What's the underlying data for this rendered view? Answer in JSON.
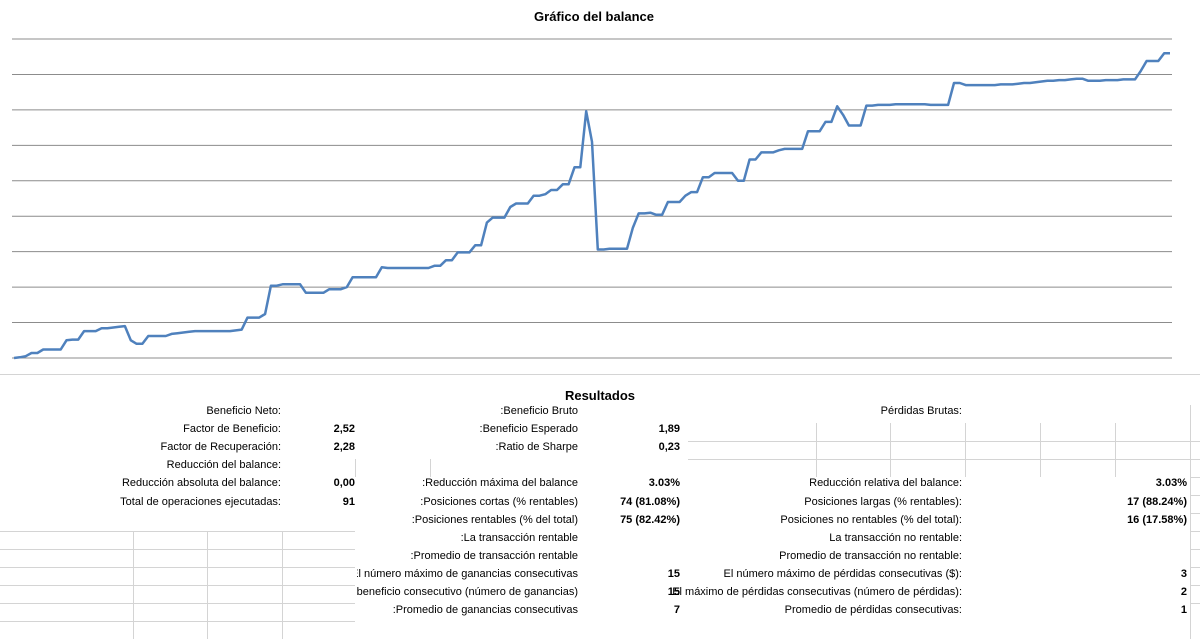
{
  "chart_data": {
    "type": "line",
    "title": "Gráfico del balance",
    "xlabel": "",
    "ylabel": "",
    "grid": true,
    "legend": "none",
    "color": "#4f81bd",
    "ylim": [
      0,
      9
    ],
    "values": [
      0.0,
      0.02,
      0.05,
      0.14,
      0.14,
      0.24,
      0.24,
      0.24,
      0.24,
      0.5,
      0.52,
      0.52,
      0.76,
      0.76,
      0.76,
      0.84,
      0.84,
      0.86,
      0.88,
      0.9,
      0.5,
      0.4,
      0.4,
      0.62,
      0.62,
      0.62,
      0.62,
      0.68,
      0.7,
      0.72,
      0.74,
      0.76,
      0.76,
      0.76,
      0.76,
      0.76,
      0.76,
      0.76,
      0.78,
      0.8,
      1.14,
      1.14,
      1.14,
      1.24,
      2.04,
      2.04,
      2.08,
      2.08,
      2.08,
      2.08,
      1.84,
      1.84,
      1.84,
      1.84,
      1.94,
      1.94,
      1.94,
      2.0,
      2.28,
      2.28,
      2.28,
      2.28,
      2.28,
      2.56,
      2.54,
      2.54,
      2.54,
      2.54,
      2.54,
      2.54,
      2.54,
      2.54,
      2.6,
      2.6,
      2.76,
      2.76,
      2.98,
      2.98,
      2.98,
      3.18,
      3.18,
      3.82,
      3.96,
      3.96,
      3.96,
      4.26,
      4.36,
      4.36,
      4.36,
      4.58,
      4.58,
      4.62,
      4.74,
      4.74,
      4.9,
      4.9,
      5.38,
      5.38,
      6.96,
      6.1,
      3.06,
      3.06,
      3.08,
      3.08,
      3.08,
      3.08,
      3.68,
      4.08,
      4.08,
      4.1,
      4.04,
      4.04,
      4.4,
      4.4,
      4.4,
      4.58,
      4.68,
      4.68,
      5.1,
      5.1,
      5.22,
      5.22,
      5.22,
      5.22,
      5.0,
      5.0,
      5.6,
      5.6,
      5.8,
      5.8,
      5.8,
      5.86,
      5.9,
      5.9,
      5.9,
      5.9,
      6.4,
      6.4,
      6.4,
      6.66,
      6.66,
      7.1,
      6.86,
      6.56,
      6.56,
      6.56,
      7.12,
      7.12,
      7.14,
      7.14,
      7.14,
      7.16,
      7.16,
      7.16,
      7.16,
      7.16,
      7.16,
      7.14,
      7.14,
      7.14,
      7.14,
      7.76,
      7.76,
      7.7,
      7.7,
      7.7,
      7.7,
      7.7,
      7.7,
      7.72,
      7.72,
      7.72,
      7.74,
      7.76,
      7.76,
      7.78,
      7.8,
      7.82,
      7.82,
      7.84,
      7.84,
      7.86,
      7.88,
      7.88,
      7.82,
      7.82,
      7.82,
      7.84,
      7.84,
      7.84,
      7.86,
      7.86,
      7.86,
      8.1,
      8.38,
      8.38,
      8.38,
      8.6,
      8.6
    ]
  },
  "results": {
    "title": "Resultados",
    "col1": [
      {
        "label": "Beneficio Neto:",
        "value": ""
      },
      {
        "label": "Factor de Beneficio:",
        "value": "2,52"
      },
      {
        "label": "Factor de Recuperación:",
        "value": "2,28"
      },
      {
        "label": "Reducción del balance:",
        "value": ""
      },
      {
        "label": "Reducción absoluta del balance:",
        "value": "0,00"
      },
      {
        "label": "Total de operaciones ejecutadas:",
        "value": "91"
      }
    ],
    "col2": [
      {
        "label": "Beneficio Bruto:",
        "value": ""
      },
      {
        "label": "Beneficio Esperado:",
        "value": "1,89"
      },
      {
        "label": "Ratio de Sharpe:",
        "value": "0,23"
      },
      {
        "label": "",
        "value": ""
      },
      {
        "label": "Reducción máxima del balance:",
        "value": "3.03%"
      },
      {
        "label": "Posiciones cortas (% rentables):",
        "value": "74 (81.08%)"
      },
      {
        "label": "Posiciones rentables (% del total):",
        "value": "75 (82.42%)"
      },
      {
        "label": "La transacción rentable:",
        "value": ""
      },
      {
        "label": "Promedio de transacción rentable:",
        "value": ""
      },
      {
        "label": "El número máximo de ganancias consecutivas ($):",
        "value": "15"
      },
      {
        "label": "El máximo de beneficio consecutivo (número de ganancias):",
        "value": "15"
      },
      {
        "label": "Promedio de ganancias consecutivas:",
        "value": "7"
      }
    ],
    "col3": [
      {
        "label": "Pérdidas Brutas:",
        "value": ""
      },
      {
        "label": "",
        "value": ""
      },
      {
        "label": "",
        "value": ""
      },
      {
        "label": "",
        "value": ""
      },
      {
        "label": "Reducción relativa del balance:",
        "value": "3.03%"
      },
      {
        "label": "Posiciones largas (% rentables):",
        "value": "17 (88.24%)"
      },
      {
        "label": "Posiciones no rentables (% del total):",
        "value": "16 (17.58%)"
      },
      {
        "label": "La transacción no rentable:",
        "value": ""
      },
      {
        "label": "Promedio de transacción no rentable:",
        "value": ""
      },
      {
        "label": "El número máximo de pérdidas consecutivas ($):",
        "value": "3"
      },
      {
        "label": "El máximo de pérdidas consecutivas (número de pérdidas):",
        "value": "2"
      },
      {
        "label": "Promedio de pérdidas consecutivas:",
        "value": "1"
      }
    ]
  }
}
